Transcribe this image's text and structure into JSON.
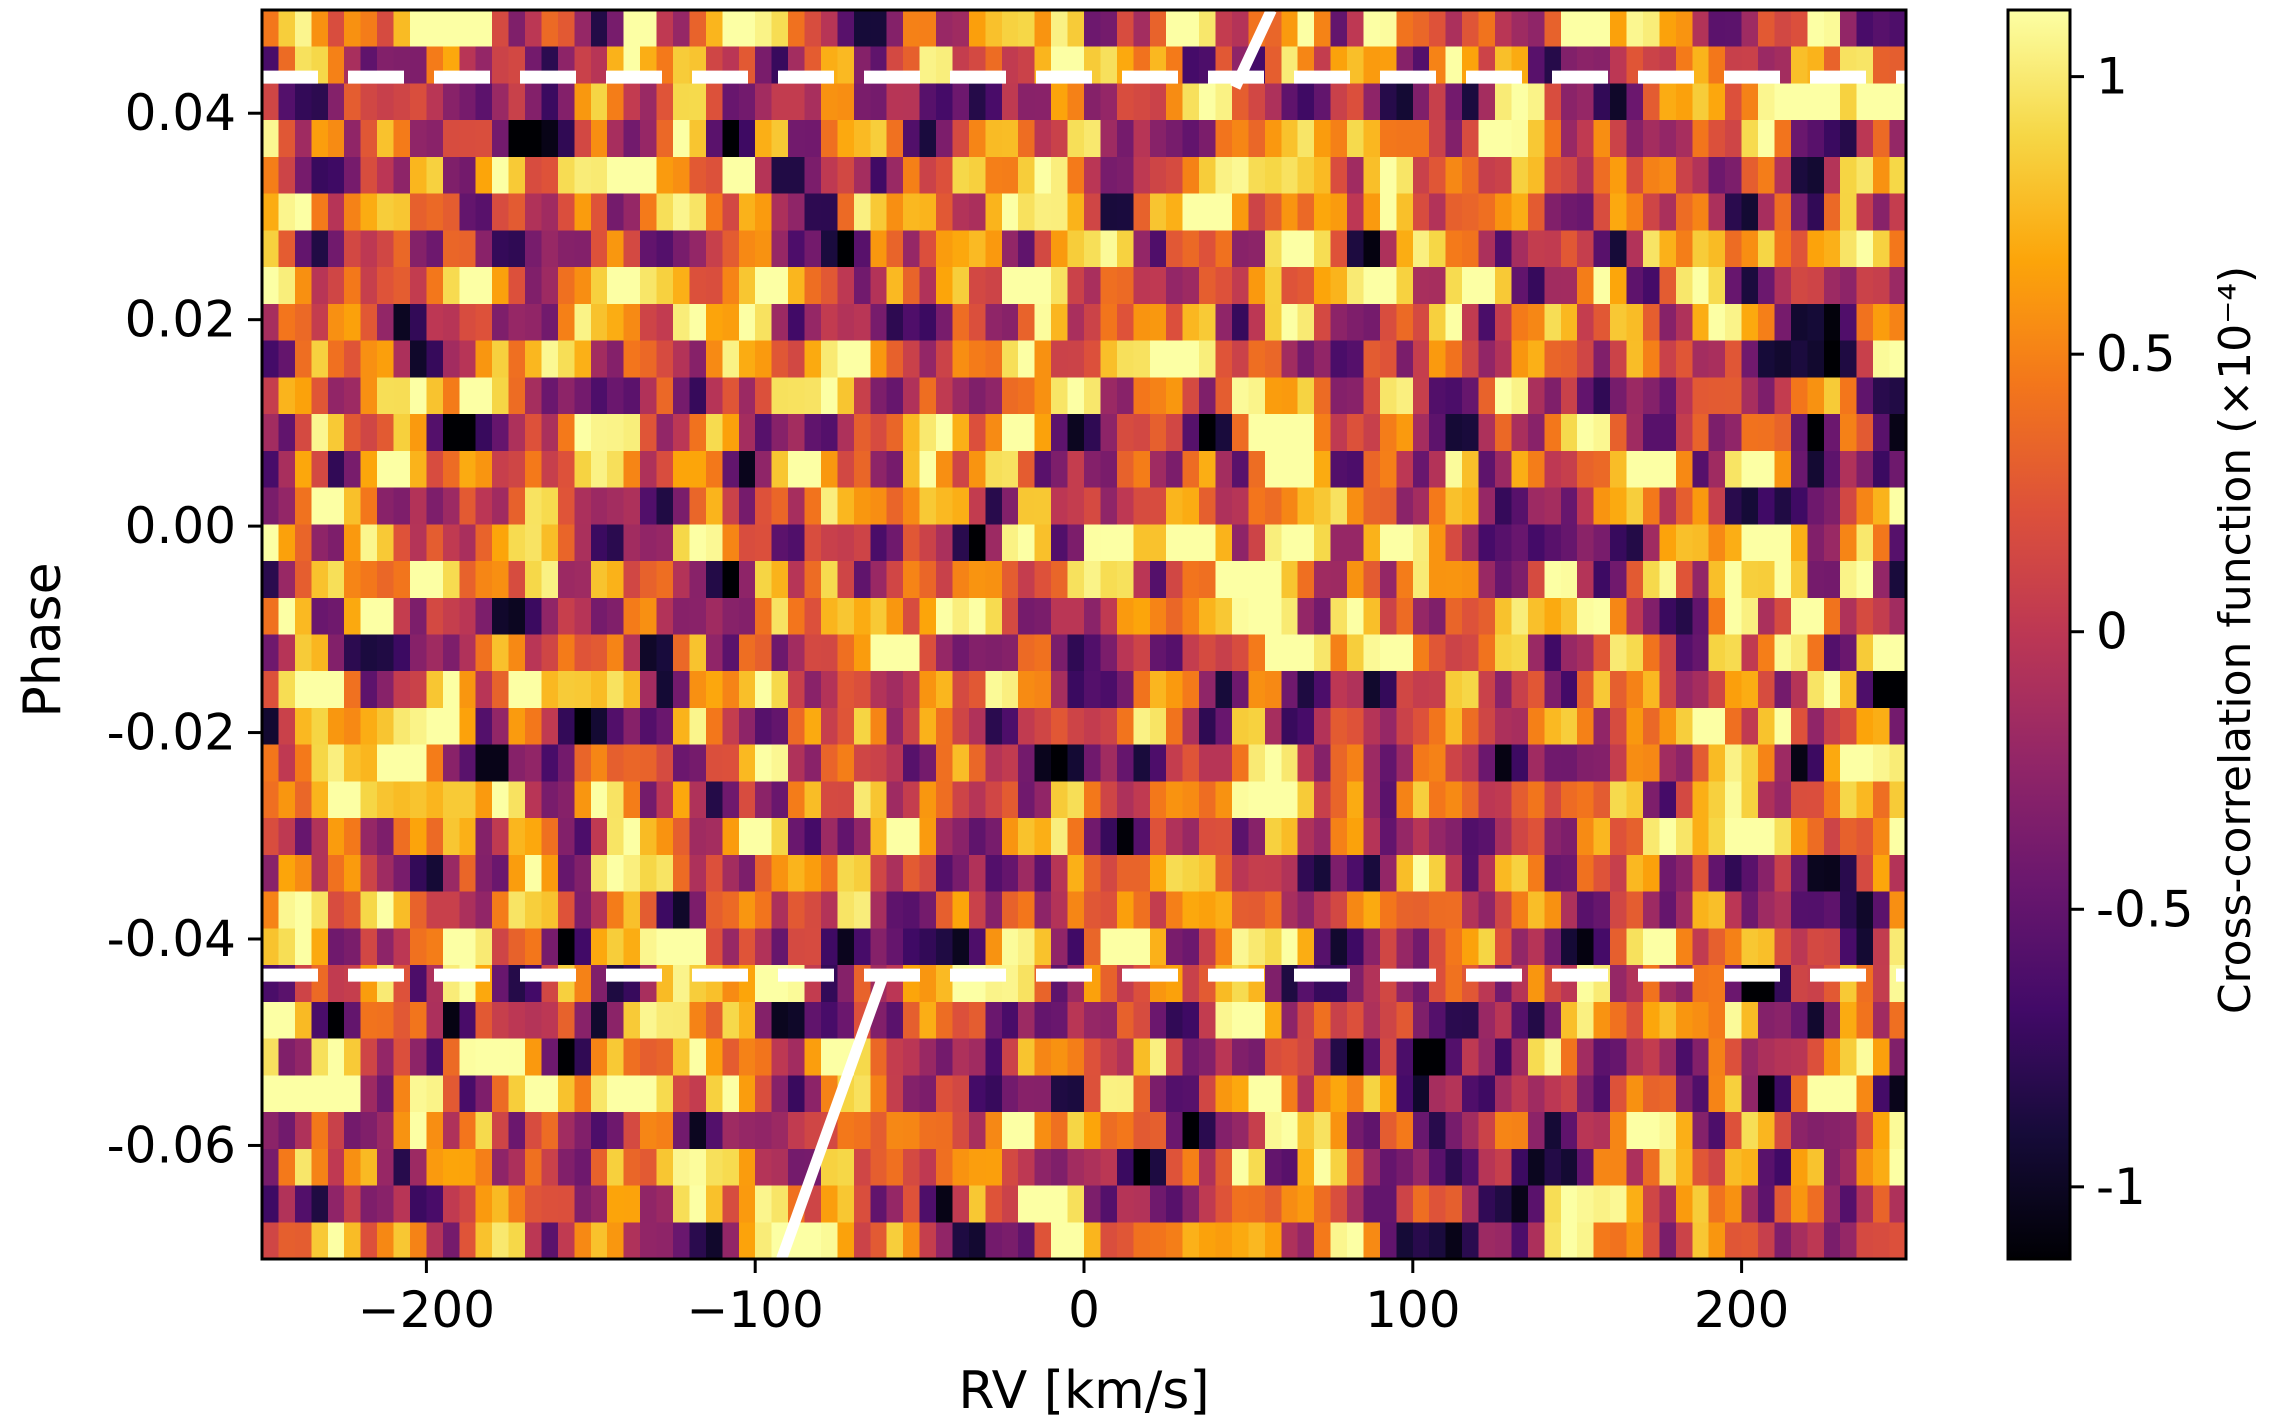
{
  "chart_data": {
    "type": "heatmap",
    "title": "",
    "xlabel": "RV [km/s]",
    "ylabel": "Phase",
    "xlim": [
      -250,
      250
    ],
    "ylim": [
      -0.071,
      0.05
    ],
    "x_ticks": [
      -200,
      -100,
      0,
      100,
      200
    ],
    "x_tick_labels": [
      "−200",
      "−100",
      "0",
      "100",
      "200"
    ],
    "y_ticks": [
      -0.06,
      -0.04,
      -0.02,
      0.0,
      0.02,
      0.04
    ],
    "y_tick_labels": [
      "-0.06",
      "-0.04",
      "-0.02",
      "0.00",
      "0.02",
      "0.04"
    ],
    "rows": 34,
    "columns": 100,
    "colormap": "inferno",
    "z_label": "Cross-correlation function (×10⁻⁴)",
    "z_range": [
      -1.13,
      1.12
    ],
    "z_ticks": [
      -1,
      -0.5,
      0,
      0.5,
      1
    ],
    "z_tick_labels": [
      "-1",
      "-0.5",
      "0",
      "0.5",
      "1"
    ],
    "transit_phase_limits": [
      -0.0435,
      0.0435
    ],
    "planet_track": [
      {
        "name": "pre-ingress",
        "points": [
          [
            -92,
            -0.071
          ],
          [
            -61,
            -0.0435
          ]
        ]
      },
      {
        "name": "post-egress",
        "points": [
          [
            46,
            0.0425
          ],
          [
            57,
            0.05
          ]
        ]
      }
    ],
    "colors": {
      "annotation_line": "#ffffff",
      "axes": "#000000"
    }
  }
}
